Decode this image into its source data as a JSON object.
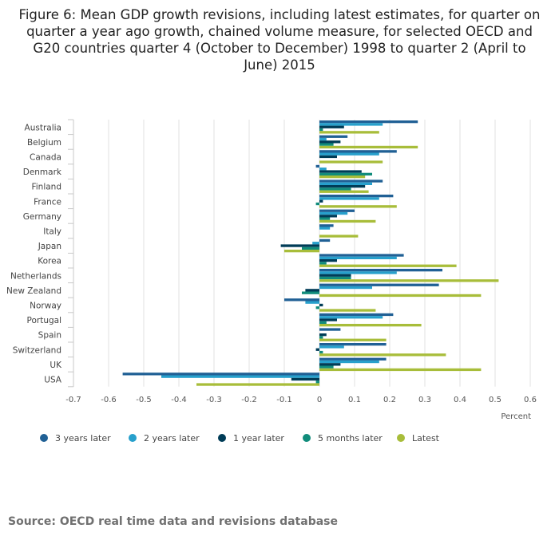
{
  "title": "Figure 6: Mean GDP growth revisions, including latest estimates, for quarter on quarter a year ago growth, chained volume measure, for selected OECD and G20 countries quarter 4 (October to December) 1998 to quarter 2 (April to June) 2015",
  "source": "Source: OECD real time data and revisions database",
  "chart_data": {
    "type": "bar",
    "orientation": "horizontal",
    "title": "Figure 6: Mean GDP growth revisions, including latest estimates, for quarter on quarter a year ago growth, chained volume measure, for selected OECD and G20 countries quarter 4 (October to December) 1998 to quarter 2 (April to June) 2015",
    "xlabel": "Percent",
    "xlim": [
      -0.7,
      0.6
    ],
    "xticks": [
      "-0.7",
      "-0.6",
      "-0.5",
      "-0.4",
      "-0.3",
      "-0.2",
      "-0.1",
      "0",
      "0.1",
      "0.2",
      "0.3",
      "0.4",
      "0.5",
      "0.6"
    ],
    "grid": true,
    "legend": "bottom",
    "categories": [
      "Australia",
      "Belgium",
      "Canada",
      "Denmark",
      "Finland",
      "France",
      "Germany",
      "Italy",
      "Japan",
      "Korea",
      "Netherlands",
      "New Zealand",
      "Norway",
      "Portugal",
      "Spain",
      "Switzerland",
      "UK",
      "USA"
    ],
    "series": [
      {
        "name": "3 years later",
        "color": "#206095",
        "values": [
          0.28,
          0.08,
          0.22,
          -0.01,
          0.18,
          0.21,
          0.1,
          0.04,
          0.03,
          0.24,
          0.35,
          0.34,
          -0.1,
          0.21,
          0.06,
          0.19,
          0.19,
          -0.56
        ]
      },
      {
        "name": "2 years later",
        "color": "#27a0cc",
        "values": [
          0.18,
          0.02,
          0.17,
          0.02,
          0.15,
          0.17,
          0.08,
          0.03,
          -0.02,
          0.22,
          0.22,
          0.15,
          -0.04,
          0.18,
          0,
          0.07,
          0.17,
          -0.45
        ]
      },
      {
        "name": "1 year later",
        "color": "#003c57",
        "values": [
          0.07,
          0.06,
          0.05,
          0.12,
          0.13,
          0.01,
          0.05,
          0,
          -0.11,
          0.05,
          0.09,
          -0.04,
          0.01,
          0.05,
          0.02,
          -0.01,
          0.06,
          -0.08
        ]
      },
      {
        "name": "5 months later",
        "color": "#118c7b",
        "values": [
          0.01,
          0.04,
          0,
          0.15,
          0.09,
          -0.01,
          0.03,
          0,
          -0.05,
          0.02,
          0.09,
          -0.05,
          -0.01,
          0.02,
          0.01,
          0.01,
          0.04,
          -0.01
        ]
      },
      {
        "name": "Latest",
        "color": "#a8bd3a",
        "values": [
          0.17,
          0.28,
          0.18,
          0.13,
          0.14,
          0.22,
          0.16,
          0.11,
          -0.1,
          0.39,
          0.51,
          0.46,
          0.16,
          0.29,
          0.19,
          0.36,
          0.46,
          -0.35
        ]
      }
    ]
  }
}
